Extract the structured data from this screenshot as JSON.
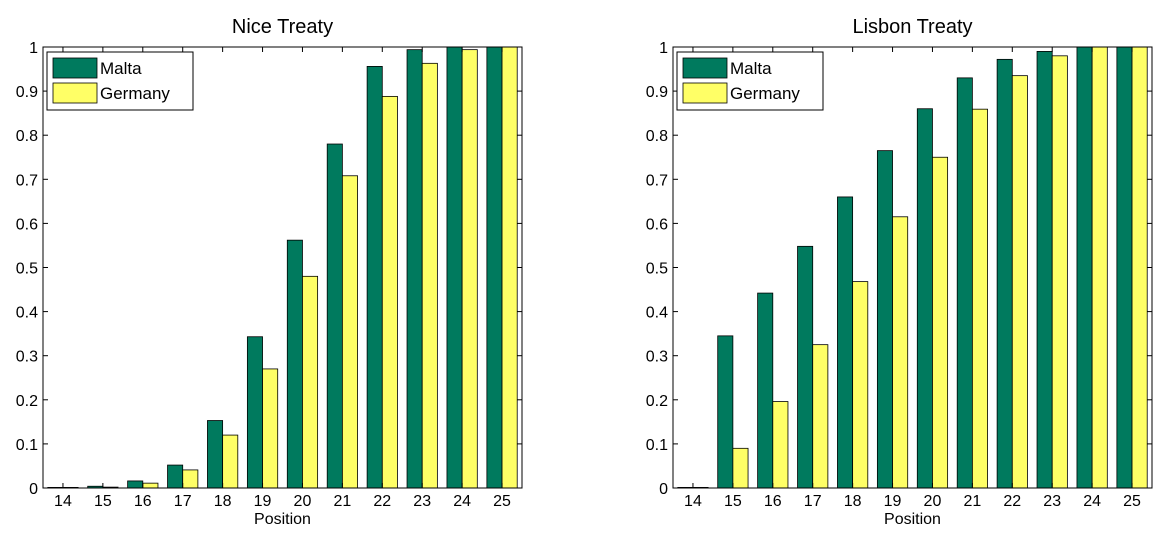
{
  "chart_data": [
    {
      "type": "bar",
      "title": "Nice Treaty",
      "xlabel": "Position",
      "ylabel": "",
      "ylim": [
        0,
        1
      ],
      "yticks": [
        "0",
        "0.1",
        "0.2",
        "0.3",
        "0.4",
        "0.5",
        "0.6",
        "0.7",
        "0.8",
        "0.9",
        "1"
      ],
      "categories": [
        "14",
        "15",
        "16",
        "17",
        "18",
        "19",
        "20",
        "21",
        "22",
        "23",
        "24",
        "25"
      ],
      "series": [
        {
          "name": "Malta",
          "color": "#007a5e",
          "values": [
            0.001,
            0.004,
            0.016,
            0.052,
            0.153,
            0.343,
            0.562,
            0.78,
            0.956,
            0.994,
            1.0,
            1.0
          ]
        },
        {
          "name": "Germany",
          "color": "#ffff66",
          "values": [
            0.0005,
            0.002,
            0.011,
            0.041,
            0.12,
            0.27,
            0.48,
            0.708,
            0.888,
            0.963,
            0.994,
            1.0
          ]
        }
      ],
      "legend": "top-left",
      "grid": false
    },
    {
      "type": "bar",
      "title": "Lisbon Treaty",
      "xlabel": "Position",
      "ylabel": "",
      "ylim": [
        0,
        1
      ],
      "yticks": [
        "0",
        "0.1",
        "0.2",
        "0.3",
        "0.4",
        "0.5",
        "0.6",
        "0.7",
        "0.8",
        "0.9",
        "1"
      ],
      "categories": [
        "14",
        "15",
        "16",
        "17",
        "18",
        "19",
        "20",
        "21",
        "22",
        "23",
        "24",
        "25"
      ],
      "series": [
        {
          "name": "Malta",
          "color": "#007a5e",
          "values": [
            0.001,
            0.345,
            0.442,
            0.548,
            0.66,
            0.765,
            0.86,
            0.93,
            0.972,
            0.99,
            1.0,
            1.0
          ]
        },
        {
          "name": "Germany",
          "color": "#ffff66",
          "values": [
            0.0005,
            0.09,
            0.196,
            0.325,
            0.468,
            0.615,
            0.75,
            0.859,
            0.935,
            0.98,
            1.0,
            1.0
          ]
        }
      ],
      "legend": "top-left",
      "grid": false
    }
  ]
}
